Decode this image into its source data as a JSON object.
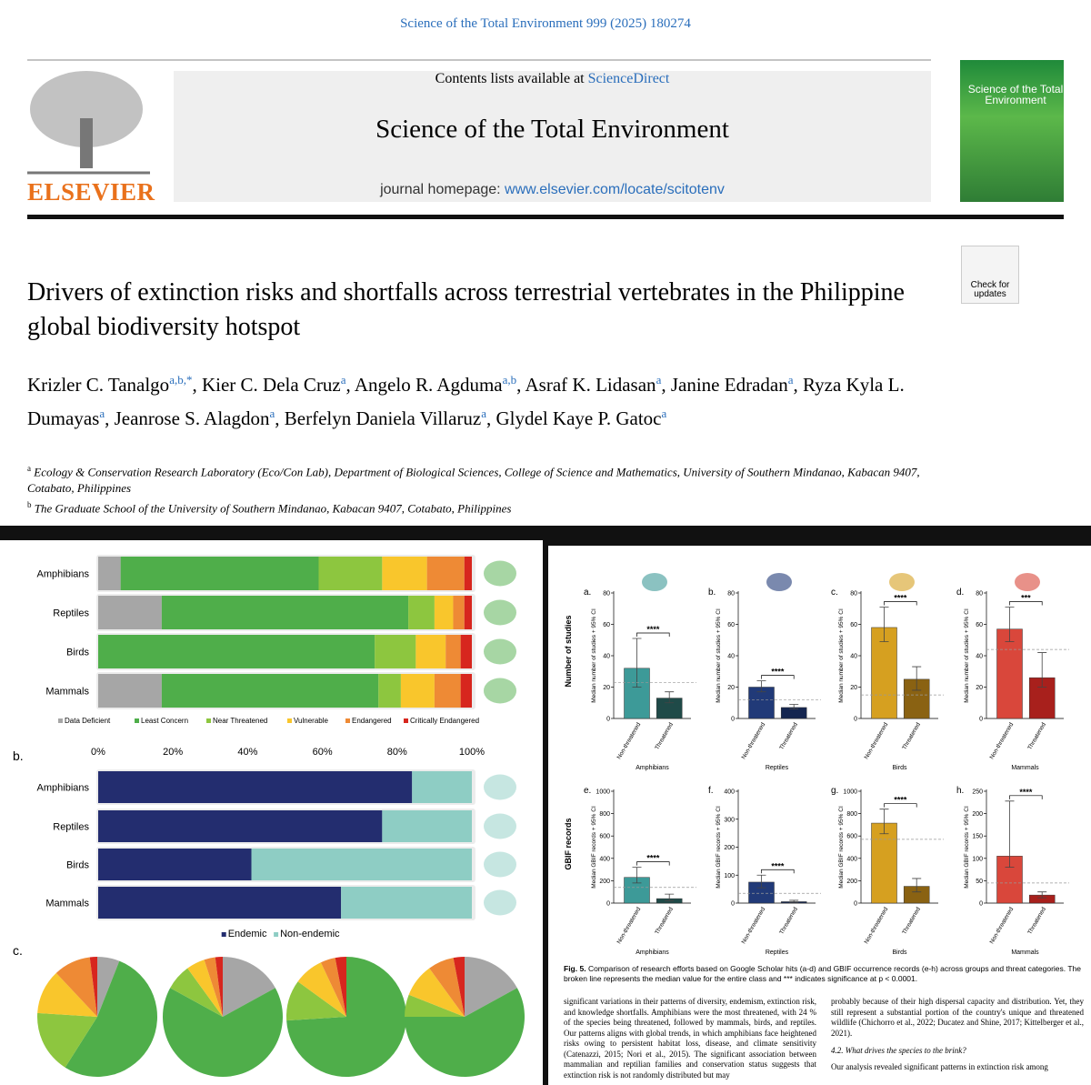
{
  "header": {
    "citation": "Science of the Total Environment 999 (2025) 180274",
    "contents_prefix": "Contents lists available at ",
    "contents_link": "ScienceDirect",
    "journal": "Science of the Total Environment",
    "homepage_prefix": "journal homepage: ",
    "homepage_link": "www.elsevier.com/locate/scitotenv",
    "publisher": "ELSEVIER",
    "cover_title": "Science of the Total Environment",
    "check_updates": "Check for updates"
  },
  "article": {
    "title": "Drivers of extinction risks and shortfalls across terrestrial vertebrates in the Philippine global biodiversity hotspot",
    "authors": [
      {
        "name": "Krizler C. Tanalgo",
        "sup": "a,b,*"
      },
      {
        "name": "Kier C. Dela Cruz",
        "sup": "a"
      },
      {
        "name": "Angelo R. Agduma",
        "sup": "a,b"
      },
      {
        "name": "Asraf K. Lidasan",
        "sup": "a"
      },
      {
        "name": "Janine Edradan",
        "sup": "a"
      },
      {
        "name": "Ryza Kyla L. Dumayas",
        "sup": "a"
      },
      {
        "name": "Jeanrose S. Alagdon",
        "sup": "a"
      },
      {
        "name": "Berfelyn Daniela Villaruz",
        "sup": "a"
      },
      {
        "name": "Glydel Kaye P. Gatoc",
        "sup": "a"
      }
    ],
    "affiliations": [
      {
        "sup": "a",
        "text": "Ecology & Conservation Research Laboratory (Eco/Con Lab), Department of Biological Sciences, College of Science and Mathematics, University of Southern Mindanao, Kabacan 9407, Cotabato, Philippines"
      },
      {
        "sup": "b",
        "text": "The Graduate School of the University of Southern Mindanao, Kabacan 9407, Cotabato, Philippines"
      }
    ]
  },
  "figure4": {
    "pie_panel": "c."
  },
  "chart_data": [
    {
      "type": "stacked_bar_h",
      "categories": [
        "Amphibians",
        "Reptiles",
        "Birds",
        "Mammals"
      ],
      "xlim": [
        0,
        100
      ],
      "series": [
        {
          "name": "Data Deficient",
          "color": "#a6a6a6",
          "values": [
            6,
            17,
            0,
            17
          ]
        },
        {
          "name": "Least Concern",
          "color": "#4fae4a",
          "values": [
            53,
            66,
            74,
            58
          ]
        },
        {
          "name": "Near Threatened",
          "color": "#8dc63f",
          "values": [
            17,
            7,
            11,
            6
          ]
        },
        {
          "name": "Vulnerable",
          "color": "#f9c62c",
          "values": [
            12,
            5,
            8,
            9
          ]
        },
        {
          "name": "Endangered",
          "color": "#ee8a35",
          "values": [
            10,
            3,
            4,
            7
          ]
        },
        {
          "name": "Critically Endangered",
          "color": "#d7261e",
          "values": [
            2,
            2,
            3,
            3
          ]
        }
      ]
    },
    {
      "type": "stacked_bar_h",
      "panel": "b.",
      "categories": [
        "Amphibians",
        "Reptiles",
        "Birds",
        "Mammals"
      ],
      "xlim": [
        0,
        100
      ],
      "xticks": [
        {
          "value": 0,
          "label": "0%"
        },
        {
          "value": 20,
          "label": "20%"
        },
        {
          "value": 40,
          "label": "40%"
        },
        {
          "value": 60,
          "label": "60%"
        },
        {
          "value": 80,
          "label": "80%"
        },
        {
          "value": 100,
          "label": "100%"
        }
      ],
      "series": [
        {
          "name": "Endemic",
          "color": "#232d6f",
          "values": [
            84,
            76,
            41,
            65
          ]
        },
        {
          "name": "Non-endemic",
          "color": "#8ecdc4",
          "values": [
            16,
            24,
            59,
            35
          ]
        }
      ]
    },
    {
      "type": "bar",
      "panel": "a.",
      "group": "Amphibians",
      "ylabel": "Median number of studies + 95% CI",
      "categories": [
        "Non-threatened",
        "Threatened"
      ],
      "values": [
        32,
        13
      ],
      "ci_lower": [
        20,
        10
      ],
      "ci_upper": [
        51,
        17
      ],
      "median": 23,
      "significance": "****",
      "colors": [
        "#3d9a98",
        "#1f4a48"
      ],
      "ylim": [
        0,
        80
      ],
      "yticks": [
        0,
        20,
        40,
        60,
        80
      ]
    },
    {
      "type": "bar",
      "panel": "b.",
      "group": "Reptiles",
      "ylabel": "Median number of studies + 95% CI",
      "categories": [
        "Non-threatened",
        "Threatened"
      ],
      "values": [
        20,
        7
      ],
      "ci_lower": [
        17,
        6
      ],
      "ci_upper": [
        24,
        9
      ],
      "median": 12,
      "significance": "****",
      "colors": [
        "#213a78",
        "#152650"
      ],
      "ylim": [
        0,
        80
      ],
      "yticks": [
        0,
        20,
        40,
        60,
        80
      ]
    },
    {
      "type": "bar",
      "panel": "c.",
      "group": "Birds",
      "ylabel": "Median number of studies + 95% CI",
      "categories": [
        "Non-threatened",
        "Threatened"
      ],
      "values": [
        58,
        25
      ],
      "ci_lower": [
        49,
        18
      ],
      "ci_upper": [
        71,
        33
      ],
      "median": 15,
      "significance": "****",
      "colors": [
        "#d6a020",
        "#8a6212"
      ],
      "ylim": [
        0,
        80
      ],
      "yticks": [
        0,
        20,
        40,
        60,
        80
      ]
    },
    {
      "type": "bar",
      "panel": "d.",
      "group": "Mammals",
      "ylabel": "Median number of studies + 95% CI",
      "categories": [
        "Non-threatened",
        "Threatened"
      ],
      "values": [
        57,
        26
      ],
      "ci_lower": [
        49,
        20
      ],
      "ci_upper": [
        71,
        42
      ],
      "median": 44,
      "significance": "***",
      "colors": [
        "#d9473b",
        "#a8201c"
      ],
      "ylim": [
        0,
        80
      ],
      "yticks": [
        0,
        20,
        40,
        60,
        80
      ]
    },
    {
      "type": "bar",
      "panel": "e.",
      "group": "Amphibians",
      "ylabel": "Median GBIF records + 95% CI",
      "categories": [
        "Non-threatened",
        "Threatened"
      ],
      "values": [
        230,
        40
      ],
      "ci_lower": [
        180,
        20
      ],
      "ci_upper": [
        320,
        80
      ],
      "median": 140,
      "significance": "****",
      "colors": [
        "#3d9a98",
        "#1f4a48"
      ],
      "ylim": [
        0,
        1000
      ],
      "yticks": [
        0,
        200,
        400,
        600,
        800,
        1000
      ]
    },
    {
      "type": "bar",
      "panel": "f.",
      "group": "Reptiles",
      "ylabel": "Median GBIF records + 95% CI",
      "categories": [
        "Non-threatened",
        "Threatened"
      ],
      "values": [
        75,
        5
      ],
      "ci_lower": [
        55,
        3
      ],
      "ci_upper": [
        100,
        10
      ],
      "median": 35,
      "significance": "****",
      "colors": [
        "#213a78",
        "#152650"
      ],
      "ylim": [
        0,
        400
      ],
      "yticks": [
        0,
        100,
        200,
        300,
        400
      ]
    },
    {
      "type": "bar",
      "panel": "g.",
      "group": "Birds",
      "ylabel": "Median GBIF records + 95% CI",
      "categories": [
        "Non-threatened",
        "Threatened"
      ],
      "values": [
        715,
        150
      ],
      "ci_lower": [
        620,
        100
      ],
      "ci_upper": [
        840,
        220
      ],
      "median": 570,
      "significance": "****",
      "colors": [
        "#d6a020",
        "#8a6212"
      ],
      "ylim": [
        0,
        1000
      ],
      "yticks": [
        0,
        200,
        400,
        600,
        800,
        1000
      ]
    },
    {
      "type": "bar",
      "panel": "h.",
      "group": "Mammals",
      "ylabel": "Median GBIF records + 95% CI",
      "categories": [
        "Non-threatened",
        "Threatened"
      ],
      "values": [
        105,
        18
      ],
      "ci_lower": [
        80,
        12
      ],
      "ci_upper": [
        228,
        25
      ],
      "median": 45,
      "significance": "****",
      "colors": [
        "#d9473b",
        "#a8201c"
      ],
      "ylim": [
        0,
        250
      ],
      "yticks": [
        0,
        50,
        100,
        150,
        200,
        250
      ]
    }
  ],
  "figure5": {
    "row_titles": [
      "Number of studies",
      "GBIF records"
    ],
    "caption_label": "Fig. 5.",
    "caption": "Comparison of research efforts based on Google Scholar hits (a-d) and GBIF occurrence records (e-h) across groups and threat categories. The broken line represents the median value for the entire class and *** indicates significance at p < 0.0001."
  },
  "body": {
    "col1": "significant variations in their patterns of diversity, endemism, extinction risk, and knowledge shortfalls. Amphibians were the most threatened, with 24 % of the species being threatened, followed by mammals, birds, and reptiles. Our patterns aligns with global trends, in which amphibians face heightened risks owing to persistent habitat loss, disease, and climate sensitivity (Catenazzi, 2015; Nori et al., 2015). The significant association between mammalian and reptilian families and conservation status suggests that extinction risk is not randomly distributed but may",
    "col2": "probably because of their high dispersal capacity and distribution. Yet, they still represent a substantial portion of the country's unique and threatened wildlife (Chichorro et al., 2022; Ducatez and Shine, 2017; Kittelberger et al., 2021).",
    "heading": "4.2. What drives the species to the brink?",
    "col2b": "Our analysis revealed significant patterns in extinction risk among"
  }
}
